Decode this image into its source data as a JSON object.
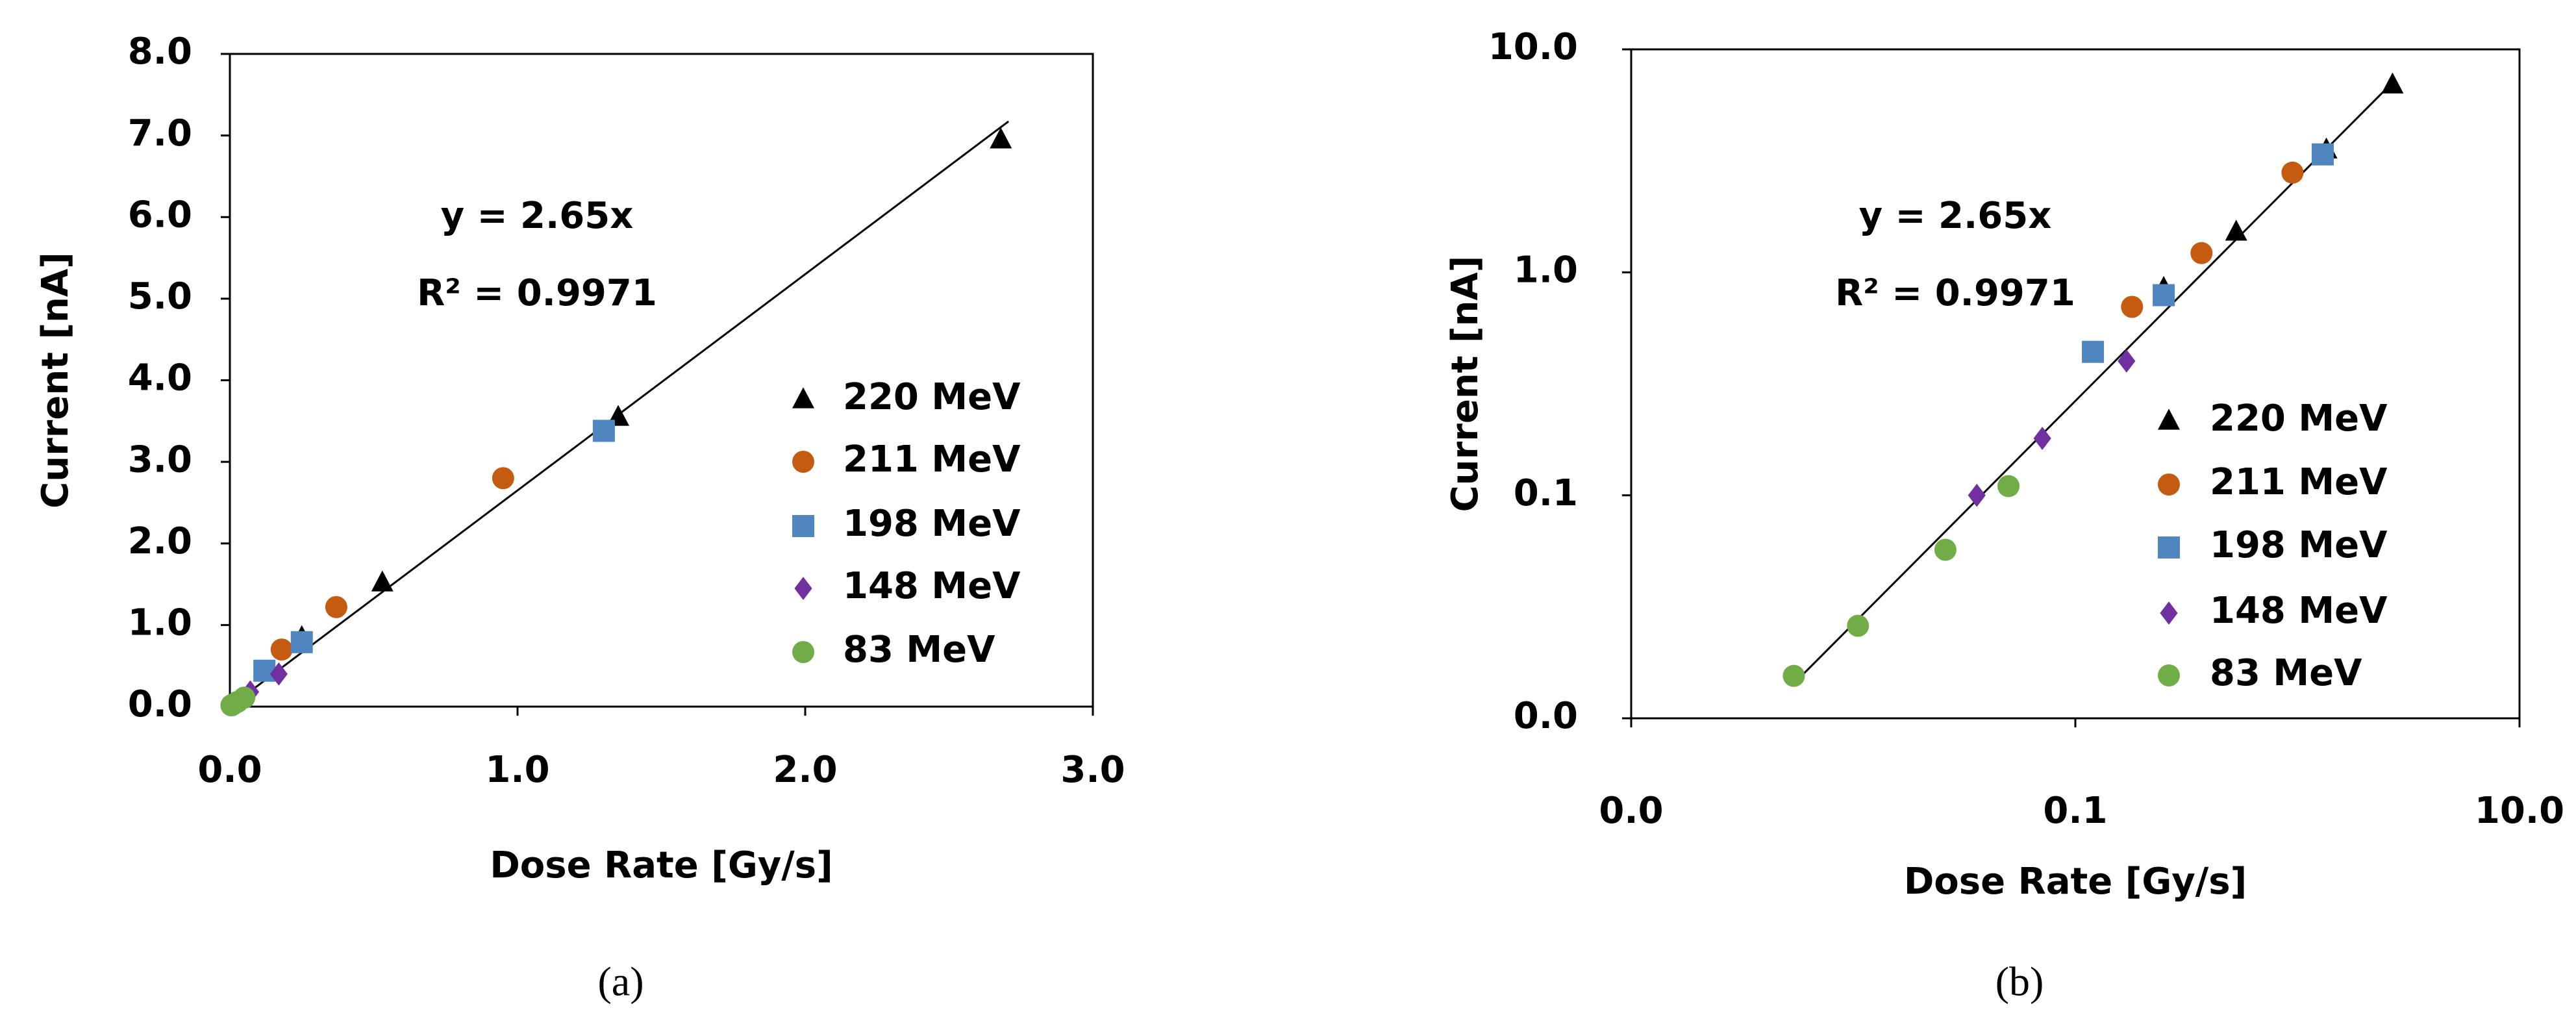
{
  "chart_data": [
    {
      "type": "scatter",
      "label": "(a)",
      "x_label": "Dose Rate [Gy/s]",
      "y_label": "Current [nA]",
      "annotations": [
        "y = 2.65x",
        "R² = 0.9971"
      ],
      "log_x": false,
      "log_y": false,
      "xlim": [
        0,
        3
      ],
      "xticks": [
        {
          "value": 0,
          "label": "0.0"
        },
        {
          "value": 1,
          "label": "1.0"
        },
        {
          "value": 2,
          "label": "2.0"
        },
        {
          "value": 3,
          "label": "3.0"
        }
      ],
      "ylim": [
        0,
        8
      ],
      "yticks": [
        {
          "value": 0,
          "label": "0.0"
        },
        {
          "value": 1,
          "label": "1.0"
        },
        {
          "value": 2,
          "label": "2.0"
        },
        {
          "value": 3,
          "label": "3.0"
        },
        {
          "value": 4,
          "label": "4.0"
        },
        {
          "value": 5,
          "label": "5.0"
        },
        {
          "value": 6,
          "label": "6.0"
        },
        {
          "value": 7,
          "label": "7.0"
        },
        {
          "value": 8,
          "label": "8.0"
        }
      ],
      "series": [
        {
          "name": "220 MeV",
          "color": "#000000",
          "marker": "triangle",
          "x": [
            0.25,
            0.53,
            1.35,
            2.68
          ],
          "values": [
            0.85,
            1.52,
            3.55,
            6.95
          ]
        },
        {
          "name": "211 MeV",
          "color": "#c55a11",
          "marker": "circle",
          "x": [
            0.18,
            0.37,
            0.95
          ],
          "values": [
            0.7,
            1.22,
            2.8
          ]
        },
        {
          "name": "198 MeV",
          "color": "#4f86c0",
          "marker": "square",
          "x": [
            0.12,
            0.25,
            1.3
          ],
          "values": [
            0.44,
            0.79,
            3.38
          ]
        },
        {
          "name": "148 MeV",
          "color": "#7030a0",
          "marker": "diamond",
          "x": [
            0.036,
            0.071,
            0.17
          ],
          "values": [
            0.1,
            0.18,
            0.4
          ]
        },
        {
          "name": "83 MeV",
          "color": "#70ad47",
          "marker": "circle",
          "x": [
            0.0054,
            0.0105,
            0.026,
            0.05
          ],
          "values": [
            0.0155,
            0.026,
            0.057,
            0.11
          ]
        }
      ]
    },
    {
      "type": "scatter",
      "label": "(b)",
      "x_label": "Dose Rate [Gy/s]",
      "y_label": "Current [nA]",
      "annotations": [
        "y = 2.65x",
        "R² = 0.9971"
      ],
      "log_x": true,
      "log_y": true,
      "xlim": [
        0.001,
        10
      ],
      "xticks": [
        {
          "value": 0.001,
          "label": "0.0"
        },
        {
          "value": 0.1,
          "label": "0.1"
        },
        {
          "value": 10,
          "label": "10.0"
        }
      ],
      "ylim": [
        0.01,
        10
      ],
      "yticks": [
        {
          "value": 0.01,
          "label": "0.0"
        },
        {
          "value": 0.1,
          "label": "0.1"
        },
        {
          "value": 1,
          "label": "1.0"
        },
        {
          "value": 10,
          "label": "10.0"
        }
      ],
      "series": [
        {
          "name": "220 MeV",
          "color": "#000000",
          "marker": "triangle",
          "x": [
            0.25,
            0.53,
            1.35,
            2.68
          ],
          "values": [
            0.85,
            1.52,
            3.55,
            6.95
          ]
        },
        {
          "name": "211 MeV",
          "color": "#c55a11",
          "marker": "circle",
          "x": [
            0.18,
            0.37,
            0.95
          ],
          "values": [
            0.7,
            1.22,
            2.8
          ]
        },
        {
          "name": "198 MeV",
          "color": "#4f86c0",
          "marker": "square",
          "x": [
            0.12,
            0.25,
            1.3
          ],
          "values": [
            0.44,
            0.79,
            3.38
          ]
        },
        {
          "name": "148 MeV",
          "color": "#7030a0",
          "marker": "diamond",
          "x": [
            0.036,
            0.071,
            0.17
          ],
          "values": [
            0.1,
            0.18,
            0.4
          ]
        },
        {
          "name": "83 MeV",
          "color": "#70ad47",
          "marker": "circle",
          "x": [
            0.0054,
            0.0105,
            0.026,
            0.05
          ],
          "values": [
            0.0155,
            0.026,
            0.057,
            0.11
          ]
        }
      ]
    }
  ]
}
